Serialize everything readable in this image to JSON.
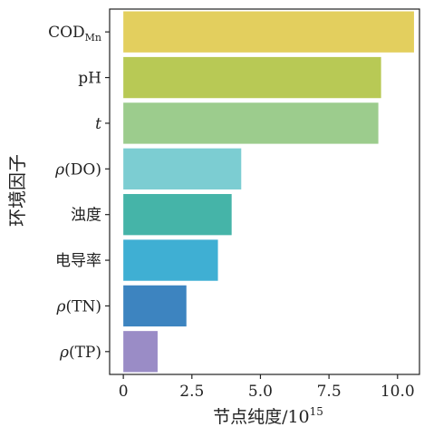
{
  "chart_data": {
    "type": "bar",
    "orientation": "horizontal",
    "title": "",
    "xlabel": {
      "main": "节点纯度/10",
      "sup": "15"
    },
    "ylabel": "环境因子",
    "xlim": [
      -0.5,
      10.8
    ],
    "xticks": [
      "0",
      "2.5",
      "5.0",
      "7.5",
      "10.0"
    ],
    "xtick_values": [
      0,
      2.5,
      5.0,
      7.5,
      10.0
    ],
    "categories": [
      {
        "label": "COD",
        "sub": "Mn",
        "italic": false
      },
      {
        "label": "pH",
        "italic": false
      },
      {
        "label": "t",
        "italic": true
      },
      {
        "label": "(DO)",
        "prefix": "ρ",
        "italic": false
      },
      {
        "label": "浊度",
        "italic": false
      },
      {
        "label": "电导率",
        "italic": false
      },
      {
        "label": "(TN)",
        "prefix": "ρ",
        "italic": false
      },
      {
        "label": "(TP)",
        "prefix": "ρ",
        "italic": false
      }
    ],
    "values": [
      10.6,
      9.4,
      9.3,
      4.3,
      3.95,
      3.45,
      2.3,
      1.25
    ],
    "colors": [
      "#e3cf5e",
      "#b8c955",
      "#9ccc8d",
      "#7ccdd2",
      "#45b4a8",
      "#3fafd3",
      "#3d84c0",
      "#9a8cc6"
    ],
    "grid": false,
    "legend": "none"
  }
}
